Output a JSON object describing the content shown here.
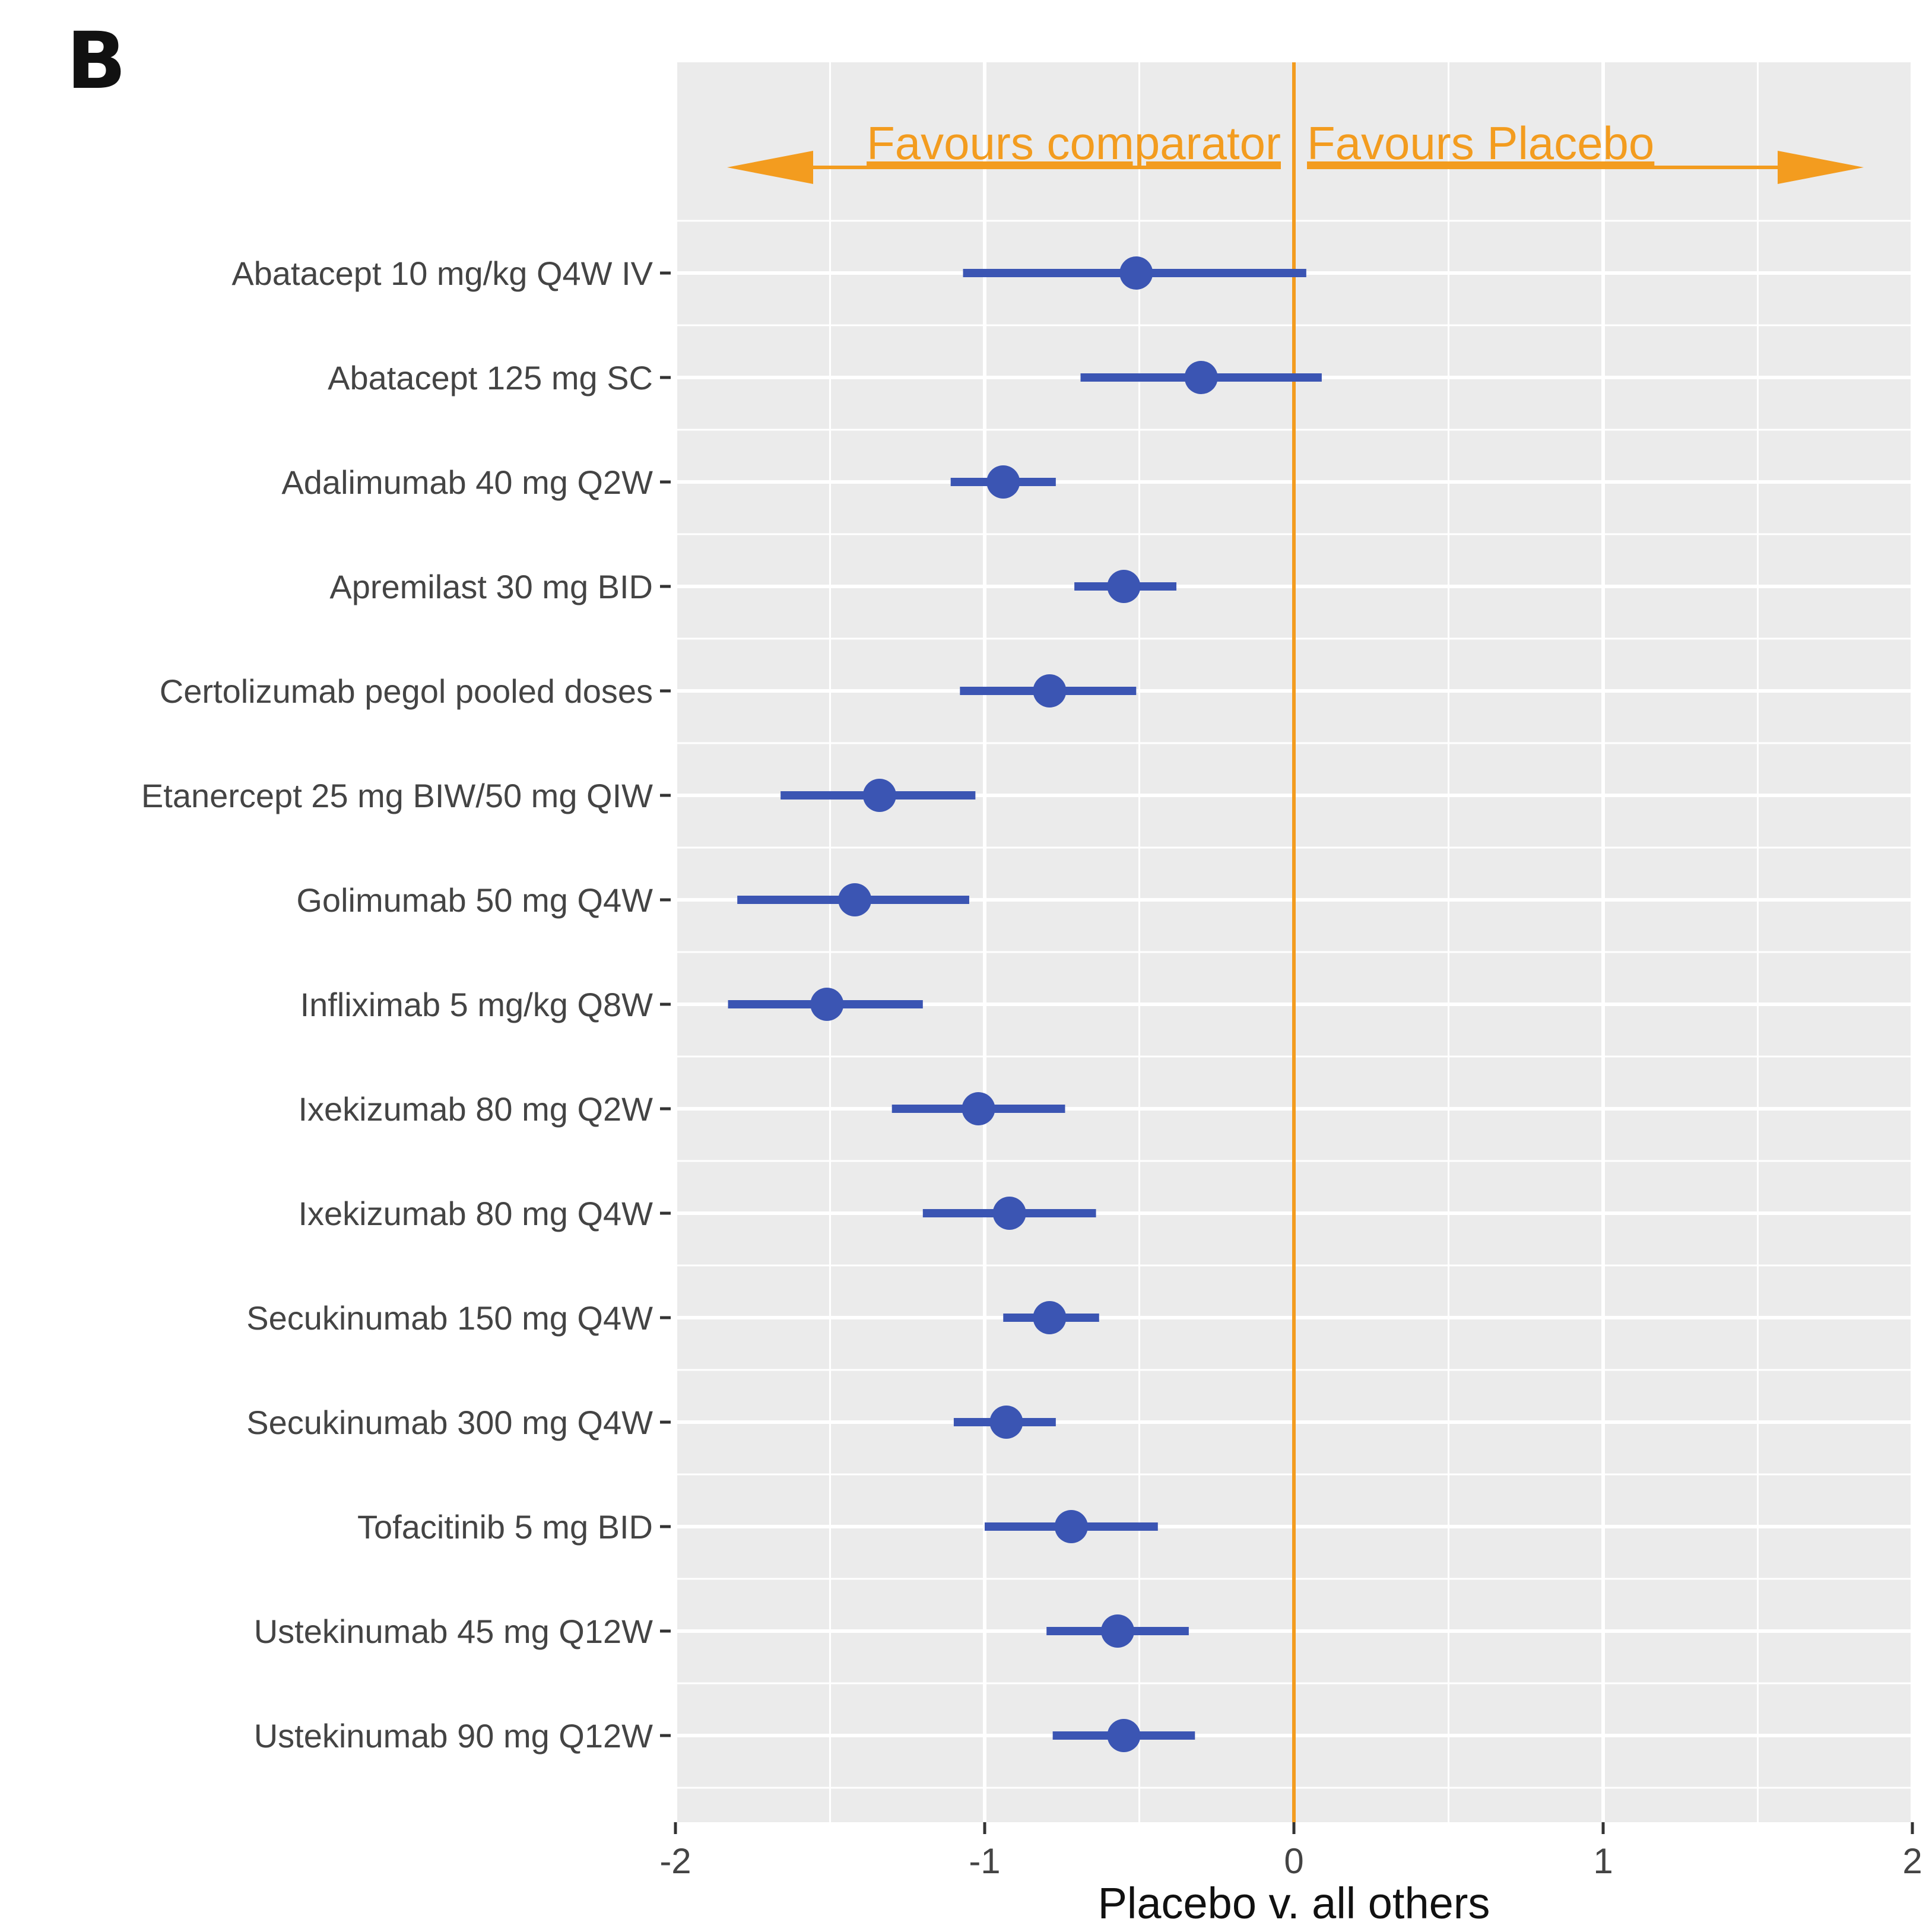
{
  "panel_label": "B",
  "chart_data": {
    "type": "forest",
    "xlabel": "Placebo v. all others",
    "xlim": [
      -2,
      2
    ],
    "x_ticks": [
      -2,
      -1,
      0,
      1,
      2
    ],
    "x_tick_labels": [
      "-2",
      "-1",
      "0",
      "1",
      "2"
    ],
    "reference_line": 0,
    "grid": true,
    "annotations": {
      "left": "Favours comparator",
      "right": "Favours Placebo"
    },
    "categories": [
      "Abatacept 10 mg/kg Q4W IV",
      "Abatacept 125 mg SC",
      "Adalimumab 40 mg Q2W",
      "Apremilast 30 mg BID",
      "Certolizumab pegol pooled doses",
      "Etanercept 25 mg BIW/50 mg QIW",
      "Golimumab 50 mg Q4W",
      "Infliximab 5 mg/kg Q8W",
      "Ixekizumab 80 mg Q2W",
      "Ixekizumab 80 mg Q4W",
      "Secukinumab 150 mg Q4W",
      "Secukinumab 300 mg Q4W",
      "Tofacitinib 5 mg BID",
      "Ustekinumab 45 mg Q12W",
      "Ustekinumab 90 mg Q12W"
    ],
    "estimates": [
      -0.51,
      -0.3,
      -0.94,
      -0.55,
      -0.79,
      -1.34,
      -1.42,
      -1.51,
      -1.02,
      -0.92,
      -0.79,
      -0.93,
      -0.72,
      -0.57,
      -0.55
    ],
    "lower": [
      -1.07,
      -0.69,
      -1.11,
      -0.71,
      -1.08,
      -1.66,
      -1.8,
      -1.83,
      -1.3,
      -1.2,
      -0.94,
      -1.1,
      -1.0,
      -0.8,
      -0.78
    ],
    "upper": [
      0.04,
      0.09,
      -0.77,
      -0.38,
      -0.51,
      -1.03,
      -1.05,
      -1.2,
      -0.74,
      -0.64,
      -0.63,
      -0.77,
      -0.44,
      -0.34,
      -0.32
    ],
    "colors": {
      "point": "#3B55B3",
      "reference": "#F39C1F",
      "panel_bg": "#EBEBEB",
      "grid": "#FFFFFF"
    }
  }
}
